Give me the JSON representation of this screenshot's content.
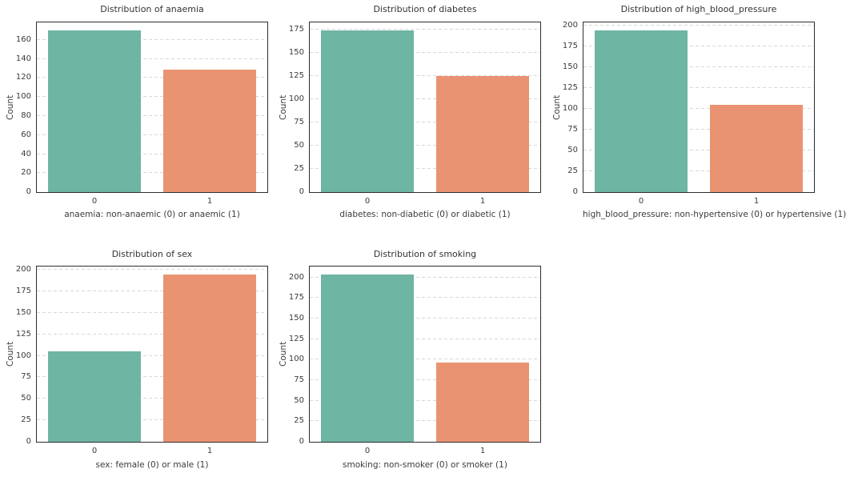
{
  "figure": {
    "background": "#ffffff"
  },
  "palette": {
    "bar_colors": [
      "#6eb5a3",
      "#ea9372"
    ],
    "grid_color": "#d8d8d8",
    "spine_color": "#2e2e2e",
    "text_color": "#3b3b3b"
  },
  "chart_data": [
    {
      "type": "bar",
      "title": "Distribution of anaemia",
      "xlabel": "anaemia: non-anaemic (0) or anaemic (1)",
      "ylabel": "Count",
      "categories": [
        "0",
        "1"
      ],
      "values": [
        170,
        129
      ],
      "yticks": [
        0,
        20,
        40,
        60,
        80,
        100,
        120,
        140,
        160
      ],
      "ylim": [
        0,
        178.5
      ],
      "grid": true,
      "legend": "none"
    },
    {
      "type": "bar",
      "title": "Distribution of diabetes",
      "xlabel": "diabetes: non-diabetic (0) or diabetic (1)",
      "ylabel": "Count",
      "categories": [
        "0",
        "1"
      ],
      "values": [
        174,
        125
      ],
      "yticks": [
        0,
        25,
        50,
        75,
        100,
        125,
        150,
        175
      ],
      "ylim": [
        0,
        182.7
      ],
      "grid": true,
      "legend": "none"
    },
    {
      "type": "bar",
      "title": "Distribution of high_blood_pressure",
      "xlabel": "high_blood_pressure: non-hypertensive (0) or hypertensive (1)",
      "ylabel": "Count",
      "categories": [
        "0",
        "1"
      ],
      "values": [
        194,
        105
      ],
      "yticks": [
        0,
        25,
        50,
        75,
        100,
        125,
        150,
        175,
        200
      ],
      "ylim": [
        0,
        203.7
      ],
      "grid": true,
      "legend": "none"
    },
    {
      "type": "bar",
      "title": "Distribution of sex",
      "xlabel": "sex: female (0) or male (1)",
      "ylabel": "Count",
      "categories": [
        "0",
        "1"
      ],
      "values": [
        105,
        194
      ],
      "yticks": [
        0,
        25,
        50,
        75,
        100,
        125,
        150,
        175,
        200
      ],
      "ylim": [
        0,
        203.7
      ],
      "grid": true,
      "legend": "none"
    },
    {
      "type": "bar",
      "title": "Distribution of smoking",
      "xlabel": "smoking: non-smoker (0) or smoker (1)",
      "ylabel": "Count",
      "categories": [
        "0",
        "1"
      ],
      "values": [
        203,
        96
      ],
      "yticks": [
        0,
        25,
        50,
        75,
        100,
        125,
        150,
        175,
        200
      ],
      "ylim": [
        0,
        213.15
      ],
      "grid": true,
      "legend": "none"
    }
  ]
}
